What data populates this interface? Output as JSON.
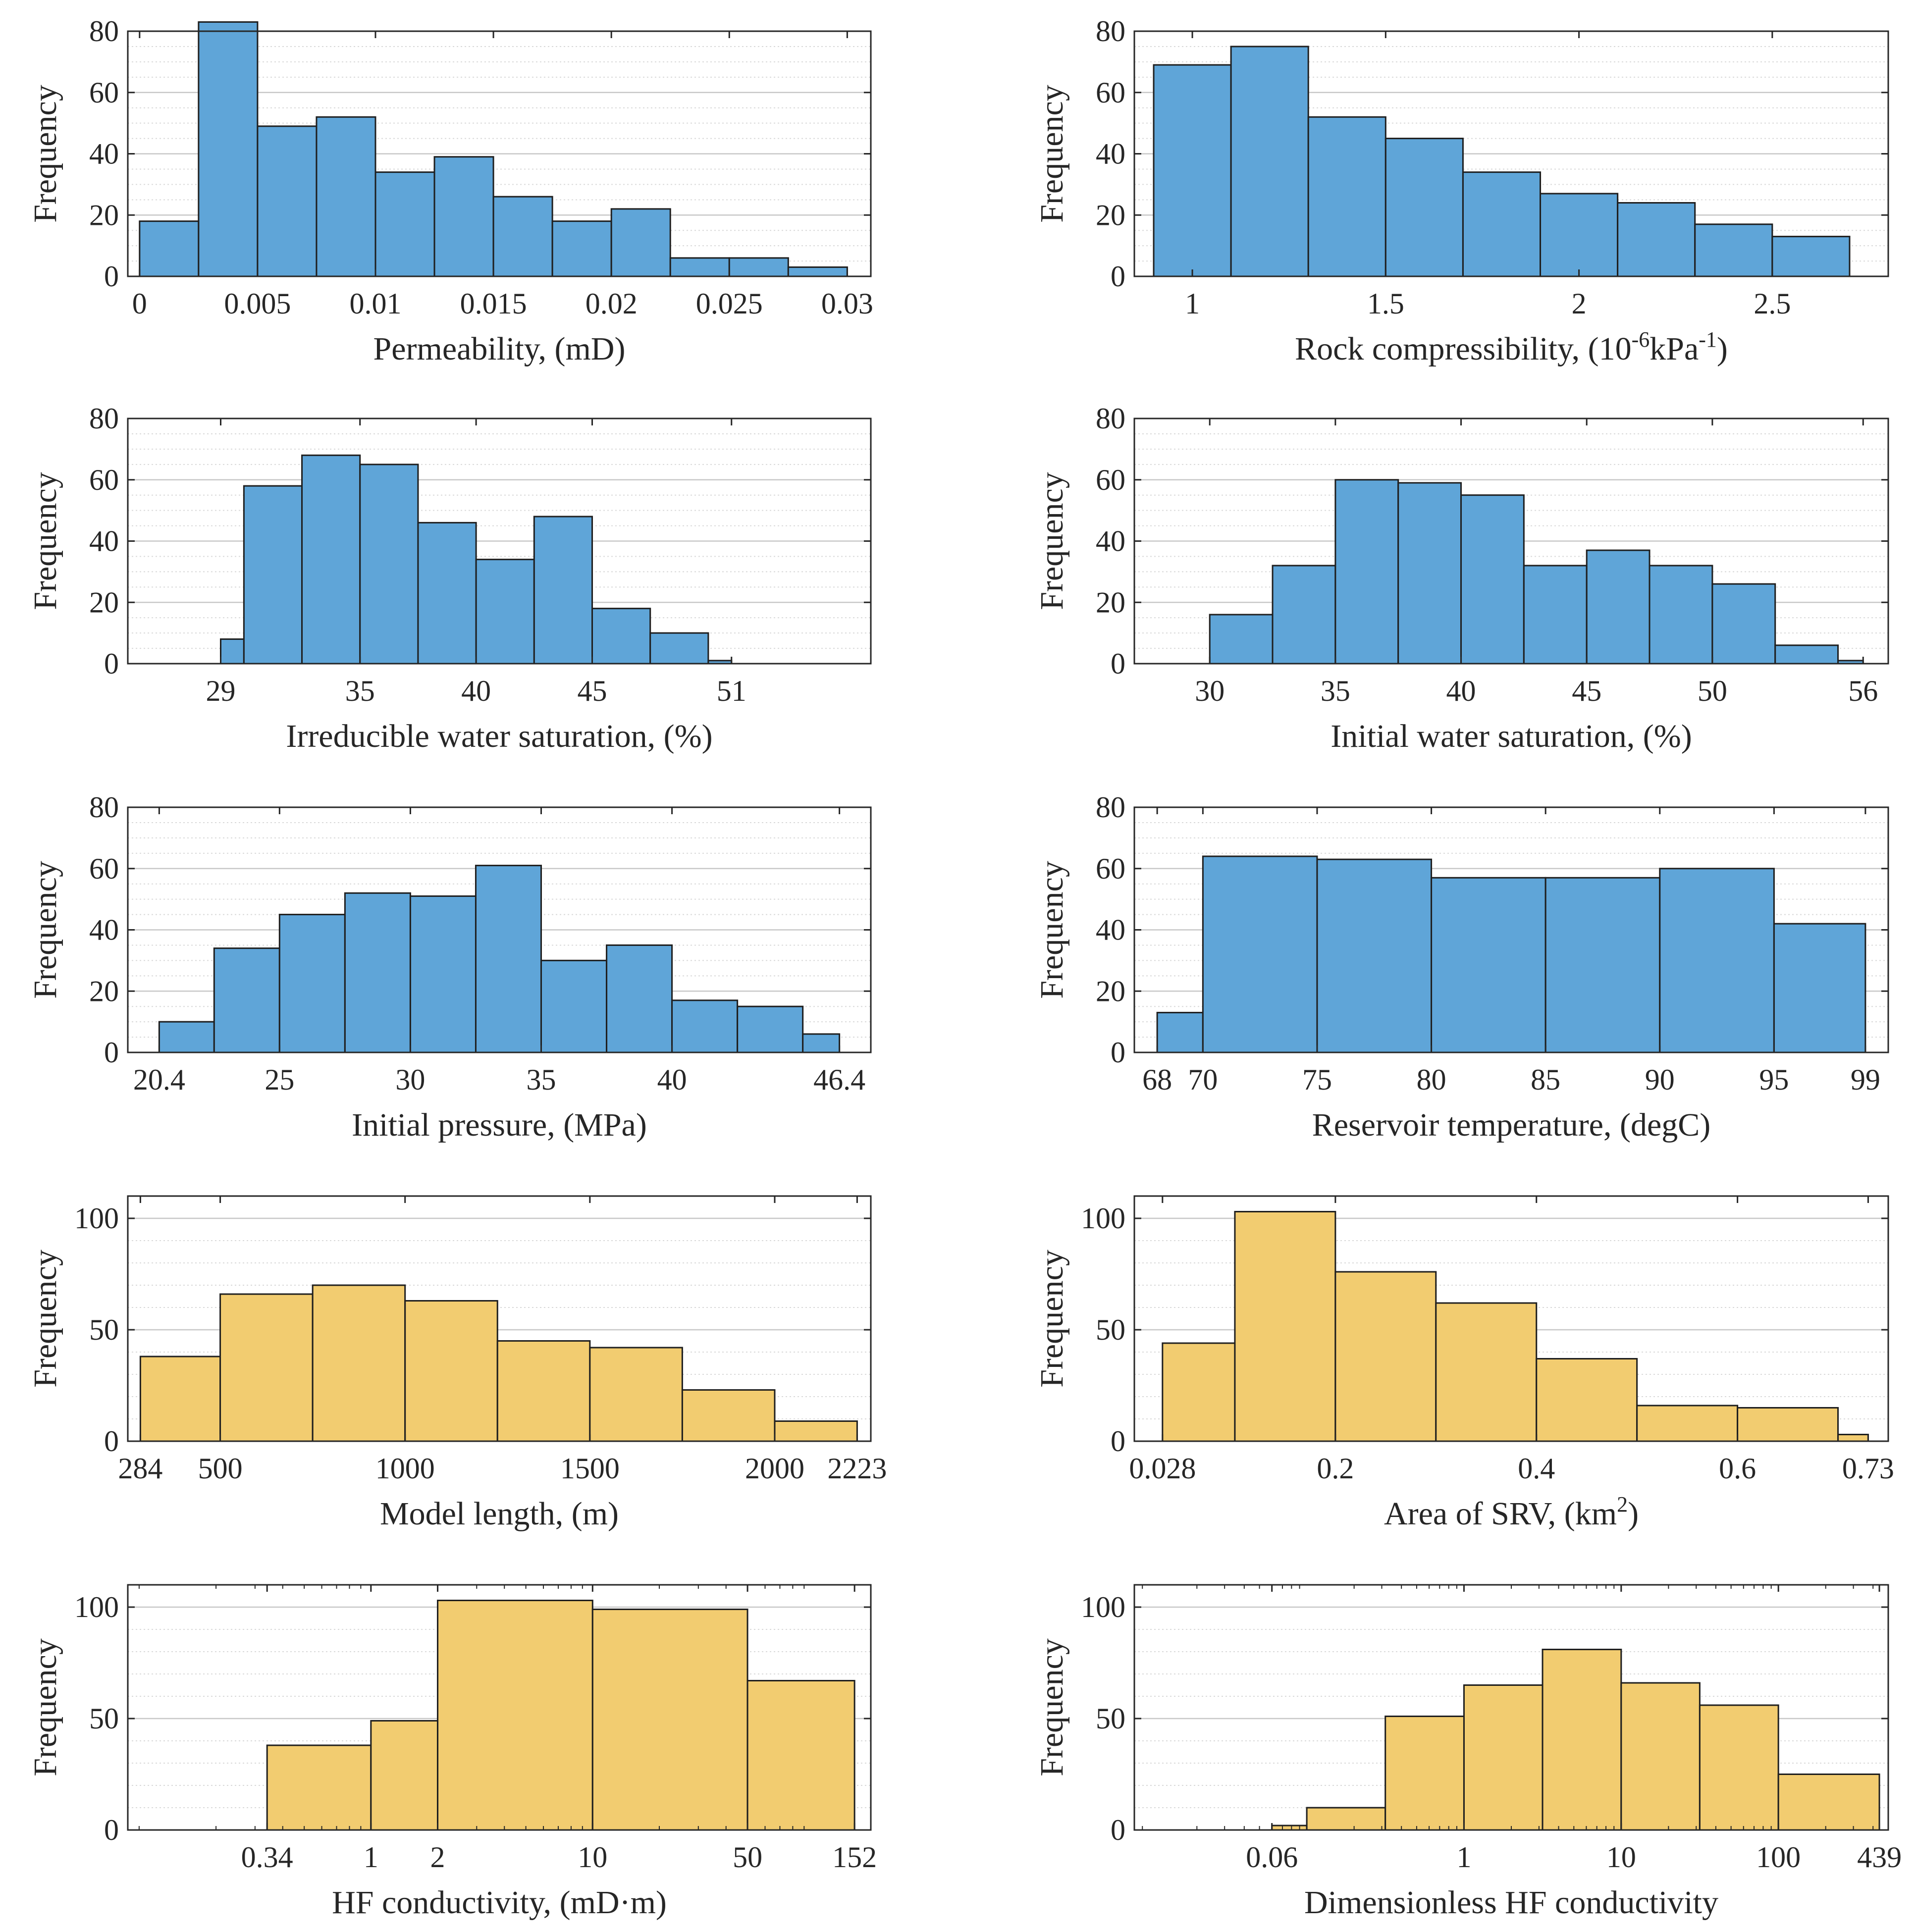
{
  "figure": {
    "ylabel": "Frequency"
  },
  "colors": {
    "blue_bar": "#5fa5d8",
    "yellow_bar": "#f2cc70",
    "edge": "#1f1f1f",
    "grid": "#d9d9d9",
    "axis": "#262626"
  },
  "chart_data": [
    {
      "id": "permeability",
      "type": "bar",
      "title": "",
      "xlabel": "Permeability, (mD)",
      "ylabel": "Frequency",
      "scale": "linear",
      "xlim": [
        -0.0005,
        0.031
      ],
      "ylim": [
        0,
        80
      ],
      "xticks": [
        0,
        0.005,
        0.01,
        0.015,
        0.02,
        0.025,
        0.03
      ],
      "xticklabels": [
        "0",
        "0.005",
        "0.01",
        "0.015",
        "0.02",
        "0.025",
        "0.03"
      ],
      "yticks": [
        0,
        20,
        40,
        60,
        80
      ],
      "yticklabels": [
        "0",
        "20",
        "40",
        "60",
        "80"
      ],
      "bin_edges": [
        0,
        0.0025,
        0.005,
        0.0075,
        0.01,
        0.0125,
        0.015,
        0.0175,
        0.02,
        0.0225,
        0.025,
        0.0275,
        0.03
      ],
      "values": [
        18,
        83,
        49,
        52,
        34,
        39,
        26,
        18,
        22,
        6,
        6,
        3
      ],
      "color": "blue"
    },
    {
      "id": "rock-compressibility",
      "type": "bar",
      "title": "",
      "xlabel": "Rock compressibility, (10",
      "xlabel_sup1": "-6",
      "xlabel_mid": "kPa",
      "xlabel_sup2": "-1",
      "xlabel_end": ")",
      "ylabel": "Frequency",
      "scale": "linear",
      "xlim": [
        0.85,
        2.8
      ],
      "ylim": [
        0,
        80
      ],
      "xticks": [
        1,
        1.5,
        2,
        2.5
      ],
      "xticklabels": [
        "1",
        "1.5",
        "2",
        "2.5"
      ],
      "yticks": [
        0,
        20,
        40,
        60,
        80
      ],
      "yticklabels": [
        "0",
        "20",
        "40",
        "60",
        "80"
      ],
      "bin_edges": [
        0.9,
        1.1,
        1.3,
        1.5,
        1.7,
        1.9,
        2.1,
        2.3,
        2.5,
        2.7
      ],
      "values": [
        69,
        75,
        52,
        45,
        34,
        27,
        24,
        17,
        13
      ],
      "color": "blue"
    },
    {
      "id": "irreducible-water-saturation",
      "type": "bar",
      "title": "",
      "xlabel": "Irreducible water saturation, (%)",
      "ylabel": "Frequency",
      "scale": "linear",
      "xlim": [
        25,
        57
      ],
      "ylim": [
        0,
        80
      ],
      "xticks": [
        29,
        35,
        40,
        45,
        51
      ],
      "xticklabels": [
        "29",
        "35",
        "40",
        "45",
        "51"
      ],
      "yticks": [
        0,
        20,
        40,
        60,
        80
      ],
      "yticklabels": [
        "0",
        "20",
        "40",
        "60",
        "80"
      ],
      "bin_edges": [
        29,
        30,
        32.5,
        35,
        37.5,
        40,
        42.5,
        45,
        47.5,
        50,
        51
      ],
      "values": [
        8,
        58,
        68,
        65,
        46,
        34,
        48,
        18,
        10,
        1
      ],
      "color": "blue"
    },
    {
      "id": "initial-water-saturation",
      "type": "bar",
      "title": "",
      "xlabel": "Initial water saturation, (%)",
      "ylabel": "Frequency",
      "scale": "linear",
      "xlim": [
        27,
        57
      ],
      "ylim": [
        0,
        80
      ],
      "xticks": [
        30,
        35,
        40,
        45,
        50,
        56
      ],
      "xticklabels": [
        "30",
        "35",
        "40",
        "45",
        "50",
        "56"
      ],
      "yticks": [
        0,
        20,
        40,
        60,
        80
      ],
      "yticklabels": [
        "0",
        "20",
        "40",
        "60",
        "80"
      ],
      "bin_edges": [
        30,
        32.5,
        35,
        37.5,
        40,
        42.5,
        45,
        47.5,
        50,
        52.5,
        55,
        56
      ],
      "values": [
        16,
        32,
        60,
        59,
        55,
        32,
        37,
        32,
        26,
        6,
        1
      ],
      "color": "blue"
    },
    {
      "id": "initial-pressure",
      "type": "bar",
      "title": "",
      "xlabel": "Initial pressure, (MPa)",
      "ylabel": "Frequency",
      "scale": "linear",
      "xlim": [
        19.2,
        47.6
      ],
      "ylim": [
        0,
        80
      ],
      "xticks": [
        20.4,
        25,
        30,
        35,
        40,
        46.4
      ],
      "xticklabels": [
        "20.4",
        "25",
        "30",
        "35",
        "40",
        "46.4"
      ],
      "yticks": [
        0,
        20,
        40,
        60,
        80
      ],
      "yticklabels": [
        "0",
        "20",
        "40",
        "60",
        "80"
      ],
      "bin_edges": [
        20.4,
        22.5,
        25,
        27.5,
        30,
        32.5,
        35,
        37.5,
        40,
        42.5,
        45,
        46.4
      ],
      "values": [
        10,
        34,
        45,
        52,
        51,
        61,
        30,
        35,
        17,
        15,
        6
      ],
      "color": "blue"
    },
    {
      "id": "reservoir-temperature",
      "type": "bar",
      "title": "",
      "xlabel": "Reservoir temperature, (degC)",
      "ylabel": "Frequency",
      "scale": "linear",
      "xlim": [
        67,
        100
      ],
      "ylim": [
        0,
        80
      ],
      "xticks": [
        68,
        70,
        75,
        80,
        85,
        90,
        95,
        99
      ],
      "xticklabels": [
        "68",
        "70",
        "75",
        "80",
        "85",
        "90",
        "95",
        "99"
      ],
      "yticks": [
        0,
        20,
        40,
        60,
        80
      ],
      "yticklabels": [
        "0",
        "20",
        "40",
        "60",
        "80"
      ],
      "bin_edges": [
        68,
        70,
        75,
        80,
        85,
        90,
        95,
        99
      ],
      "values": [
        13,
        64,
        63,
        57,
        57,
        60,
        42
      ],
      "color": "blue"
    },
    {
      "id": "model-length",
      "type": "bar",
      "title": "",
      "xlabel": "Model length, (m)",
      "ylabel": "Frequency",
      "scale": "linear",
      "xlim": [
        250,
        2260
      ],
      "ylim": [
        0,
        110
      ],
      "xticks": [
        284,
        500,
        1000,
        1500,
        2000,
        2223
      ],
      "xticklabels": [
        "284",
        "500",
        "1000",
        "1500",
        "2000",
        "2223"
      ],
      "yticks": [
        0,
        50,
        100
      ],
      "yticklabels": [
        "0",
        "50",
        "100"
      ],
      "bin_edges": [
        284,
        500,
        750,
        1000,
        1250,
        1500,
        1750,
        2000,
        2223
      ],
      "values": [
        38,
        66,
        70,
        63,
        45,
        42,
        23,
        9
      ],
      "color": "yellow"
    },
    {
      "id": "area-of-srv",
      "type": "bar",
      "title": "",
      "xlabel": "Area of SRV, (km",
      "xlabel_sup1": "2",
      "xlabel_end": ")",
      "ylabel": "Frequency",
      "scale": "linear",
      "xlim": [
        0,
        0.75
      ],
      "ylim": [
        0,
        110
      ],
      "xticks": [
        0.028,
        0.2,
        0.4,
        0.6,
        0.73
      ],
      "xticklabels": [
        "0.028",
        "0.2",
        "0.4",
        "0.6",
        "0.73"
      ],
      "yticks": [
        0,
        50,
        100
      ],
      "yticklabels": [
        "0",
        "50",
        "100"
      ],
      "bin_edges": [
        0.028,
        0.1,
        0.2,
        0.3,
        0.4,
        0.5,
        0.6,
        0.7,
        0.73
      ],
      "values": [
        44,
        103,
        76,
        62,
        37,
        16,
        15,
        3
      ],
      "color": "yellow"
    },
    {
      "id": "hf-conductivity",
      "type": "bar",
      "title": "",
      "xlabel": "HF conductivity, (mD·m)",
      "ylabel": "Frequency",
      "scale": "log",
      "xlim": [
        0.08,
        180
      ],
      "ylim": [
        0,
        110
      ],
      "xticks": [
        0.34,
        1,
        2,
        10,
        50,
        152
      ],
      "xticklabels": [
        "0.34",
        "1",
        "2",
        "10",
        "50",
        "152"
      ],
      "yticks": [
        0,
        50,
        100
      ],
      "yticklabels": [
        "0",
        "50",
        "100"
      ],
      "bin_edges": [
        0.34,
        1,
        2,
        10,
        50,
        152
      ],
      "values": [
        38,
        49,
        103,
        99,
        67
      ],
      "color": "yellow"
    },
    {
      "id": "dimensionless-hf-conductivity",
      "type": "bar",
      "title": "",
      "xlabel": "Dimensionless HF conductivity",
      "ylabel": "Frequency",
      "scale": "log",
      "xlim": [
        0.008,
        500
      ],
      "ylim": [
        0,
        110
      ],
      "xticks": [
        0.06,
        1,
        10,
        100,
        439
      ],
      "xticklabels": [
        "0.06",
        "1",
        "10",
        "100",
        "439"
      ],
      "yticks": [
        0,
        50,
        100
      ],
      "yticklabels": [
        "0",
        "50",
        "100"
      ],
      "bin_edges": [
        0.06,
        0.1,
        0.316,
        1,
        3.16,
        10,
        31.6,
        100,
        439
      ],
      "values": [
        2,
        10,
        51,
        65,
        81,
        66,
        56,
        25
      ],
      "color": "yellow"
    }
  ]
}
